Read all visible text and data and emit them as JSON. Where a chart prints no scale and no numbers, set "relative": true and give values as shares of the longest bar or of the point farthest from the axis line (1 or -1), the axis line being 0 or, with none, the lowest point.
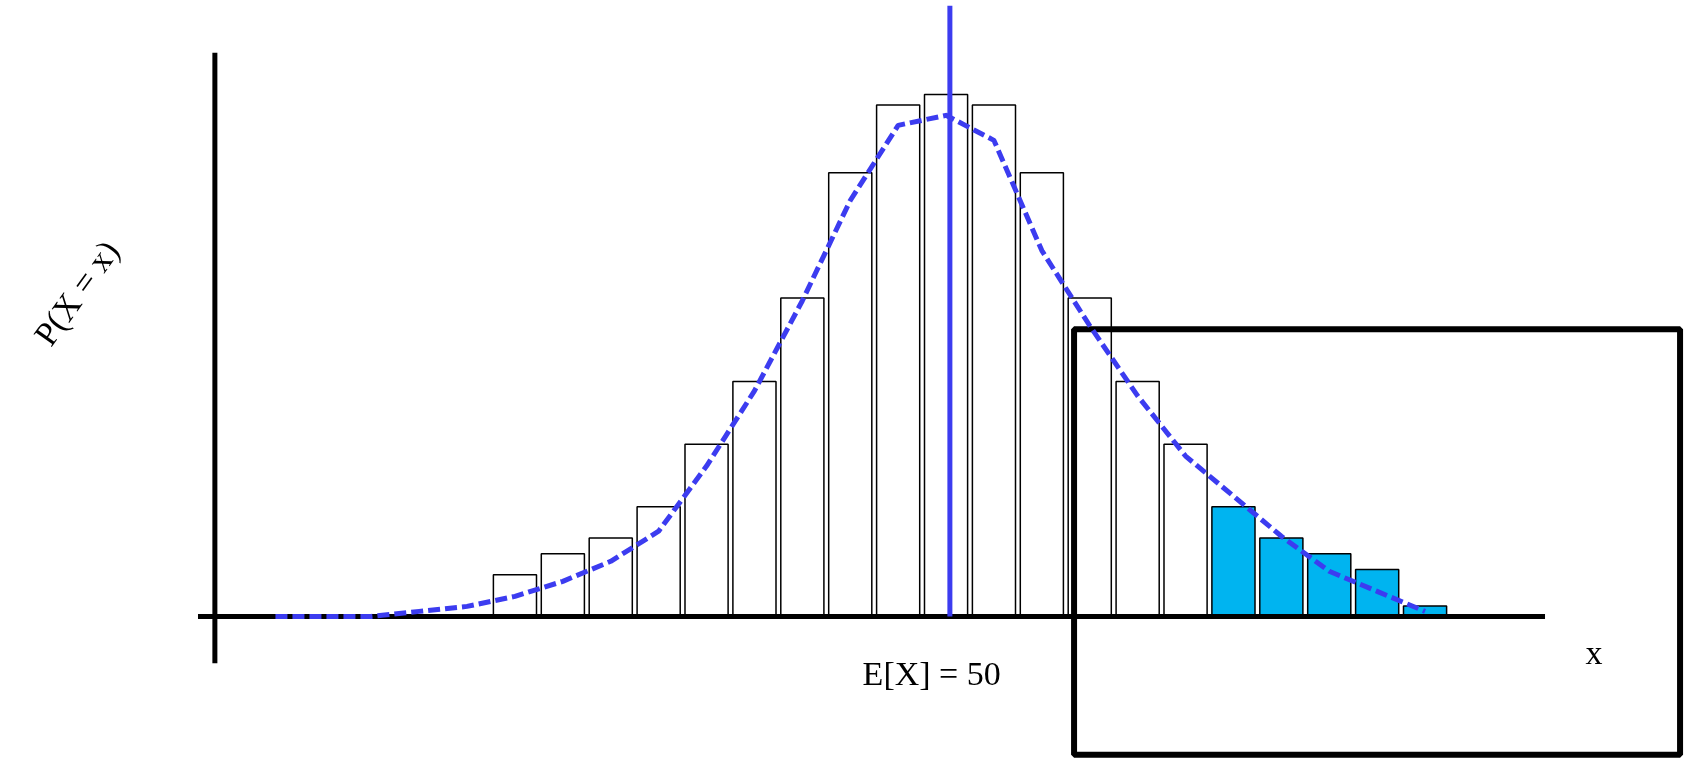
{
  "chart_data": [
    {
      "type": "bar",
      "relative": true,
      "xlabel": "x",
      "ylabel": "P(X = x)",
      "categories": [
        null,
        null,
        null,
        null,
        null,
        null,
        null,
        null,
        null,
        null,
        null,
        null,
        null,
        null,
        null,
        null,
        null,
        null,
        null,
        null
      ],
      "colors": [
        "#ffffff",
        "#ffffff",
        "#ffffff",
        "#ffffff",
        "#ffffff",
        "#ffffff",
        "#ffffff",
        "#ffffff",
        "#ffffff",
        "#ffffff",
        "#ffffff",
        "#ffffff",
        "#ffffff",
        "#ffffff",
        "#ffffff",
        "#00b4f0",
        "#00b4f0",
        "#00b4f0",
        "#00b4f0",
        "#00b4f0"
      ],
      "values": [
        0.08,
        0.12,
        0.15,
        0.21,
        0.33,
        0.45,
        0.61,
        0.85,
        0.98,
        1,
        0.98,
        0.85,
        0.61,
        0.45,
        0.33,
        0.21,
        0.15,
        0.12,
        0.09,
        0.02
      ],
      "annotations": [
        "E[X] = 50"
      ]
    },
    {
      "type": "line",
      "relative": true,
      "color": "#3c3cf0",
      "line_style": "dashed",
      "categories": [
        null,
        null,
        null,
        null,
        null,
        null,
        null,
        null,
        null,
        null,
        null,
        null,
        null,
        null,
        null,
        null,
        null,
        null,
        null,
        null,
        null,
        null,
        null,
        null,
        null
      ],
      "values": [
        0,
        0,
        0,
        0.01,
        0.02,
        0.04,
        0.07,
        0.11,
        0.17,
        0.3,
        0.45,
        0.63,
        0.83,
        0.98,
        1,
        0.95,
        0.73,
        0.58,
        0.44,
        0.32,
        0.24,
        0.16,
        0.09,
        0.05,
        0.01
      ]
    }
  ]
}
